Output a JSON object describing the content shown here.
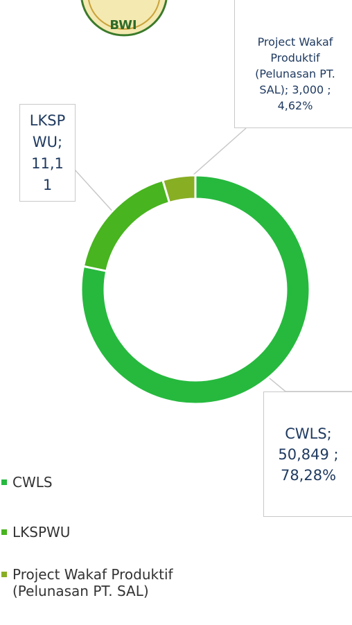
{
  "logo": {
    "text": "BWI"
  },
  "chart_data": {
    "type": "donut",
    "categories": [
      "CWLS",
      "LKSPWU",
      "Project Wakaf Produktif (Pelunasan PT. SAL)"
    ],
    "values": [
      50.849,
      11.11,
      3.0
    ],
    "value_labels": [
      "CWLS; 50,849 ; 78,28%",
      "LKSPWU; 11,11",
      "Project Wakaf Produktif (Pelunasan PT. SAL); 3,000 ; 4,62%"
    ],
    "colors": [
      "#26b93e",
      "#48b41f",
      "#88ae24"
    ],
    "legend": "bottom-left"
  }
}
